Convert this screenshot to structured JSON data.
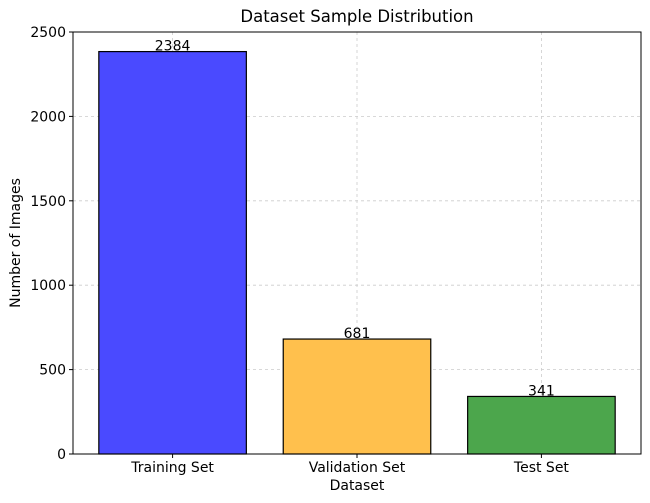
{
  "chart_data": {
    "type": "bar",
    "title": "Dataset Sample Distribution",
    "x_label": "Dataset",
    "y_label": "Number of Images",
    "categories": [
      "Training Set",
      "Validation Set",
      "Test Set"
    ],
    "values": [
      2384,
      681,
      341
    ],
    "colors": [
      "#4a4aff",
      "#ffc04d",
      "#4ca64c"
    ],
    "ylim": [
      0,
      2500
    ],
    "yticks": [
      0,
      500,
      1000,
      1500,
      2000,
      2500
    ],
    "grid": true
  }
}
